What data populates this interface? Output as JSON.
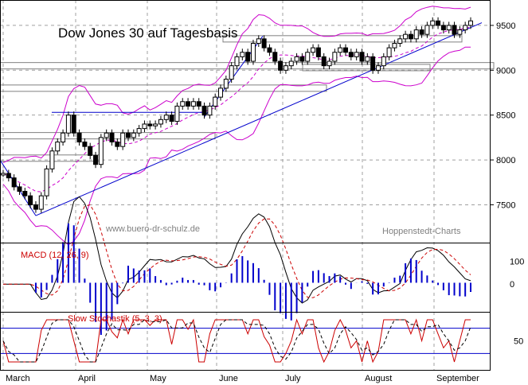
{
  "chart_data": [
    {
      "type": "line",
      "title": "Dow Jones 30 auf Tagesbasis",
      "watermark": "www.buero-dr-schulz.de",
      "source": "Hoppenstedt-Charts",
      "ylim": [
        7300,
        9650
      ],
      "yticks": [
        7500,
        8000,
        8500,
        9000,
        9500
      ],
      "xticks": [
        "March",
        "April",
        "May",
        "June",
        "July",
        "August",
        "September"
      ],
      "colors": {
        "price": "#000000",
        "bollinger": "#cc00cc",
        "trend": "#0000cc",
        "box": "#808080"
      },
      "series": [
        {
          "values": [
            7850,
            7800,
            7700,
            7650,
            7600,
            7500,
            7450,
            7600,
            7900,
            8100,
            8200,
            8300,
            8500,
            8300,
            8200,
            8150,
            8050,
            7950,
            8250,
            8300,
            8200,
            8150,
            8300,
            8250,
            8300,
            8350,
            8400,
            8380,
            8400,
            8450,
            8500,
            8430,
            8600,
            8650,
            8600,
            8650,
            8600,
            8500,
            8600,
            8700,
            8800,
            8900,
            9050,
            9150,
            9200,
            9100,
            9300,
            9350,
            9250,
            9200,
            9100,
            9000,
            9050,
            9100,
            9150,
            9100,
            9200,
            9250,
            9150,
            9050,
            9100,
            9200,
            9250,
            9200,
            9150,
            9200,
            9100,
            9150,
            9000,
            9050,
            9150,
            9250,
            9300,
            9350,
            9400,
            9350,
            9450,
            9400,
            9500,
            9550,
            9500,
            9450,
            9500,
            9400,
            9450,
            9500,
            9550
          ]
        }
      ]
    },
    {
      "type": "line",
      "title": "MACD (12, 26, 9)",
      "yticks": [
        100,
        0
      ],
      "colors": {
        "macd": "#000000",
        "signal": "#cc0000",
        "histogram": "#0000cc"
      }
    },
    {
      "type": "line",
      "title": "Slow Stochastik (5, 3, 3)",
      "yticks": [
        50
      ],
      "colors": {
        "k": "#cc0000",
        "d": "#000000",
        "bands": "#0000cc"
      }
    }
  ]
}
